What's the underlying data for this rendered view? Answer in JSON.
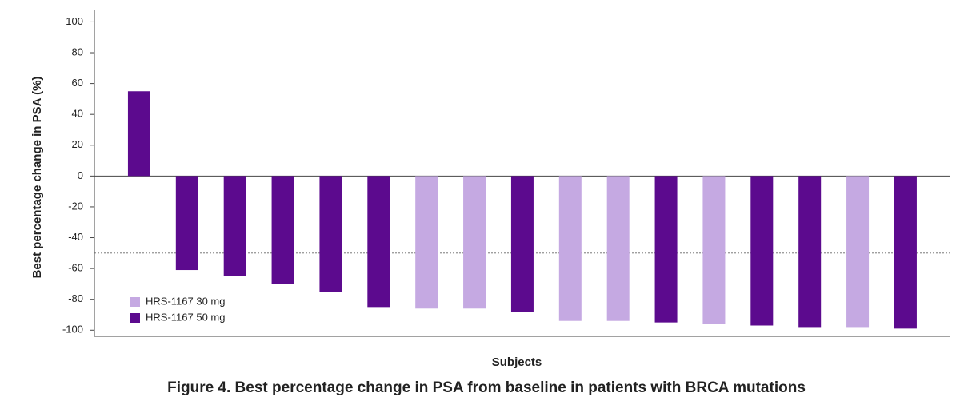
{
  "chart_data": {
    "type": "bar",
    "caption": "Figure 4. Best percentage change in PSA from baseline in patients with BRCA mutations",
    "x_label": "Subjects",
    "y_label": "Best percentage change in PSA (%)",
    "categories": [
      null,
      null,
      null,
      null,
      null,
      null,
      null,
      null,
      null,
      null,
      null,
      null,
      null,
      null,
      null,
      null,
      null
    ],
    "series": [
      {
        "name": "HRS-1167 30 mg",
        "color": "#c5a9e2",
        "values": [
          null,
          null,
          null,
          null,
          null,
          null,
          -86,
          -86,
          null,
          -94,
          -94,
          null,
          -96,
          null,
          null,
          -98,
          null
        ]
      },
      {
        "name": "HRS-1167 50 mg",
        "color": "#5c0a8e",
        "values": [
          55,
          -61,
          -65,
          -70,
          -75,
          -85,
          null,
          null,
          -88,
          null,
          null,
          -95,
          null,
          -97,
          -98,
          null,
          -99
        ]
      }
    ],
    "ylim": [
      -104,
      108
    ],
    "yticks": [
      -100,
      -80,
      -60,
      -40,
      -20,
      0,
      20,
      40,
      60,
      80,
      100
    ],
    "reference_line": -50,
    "legend": "lower left"
  }
}
